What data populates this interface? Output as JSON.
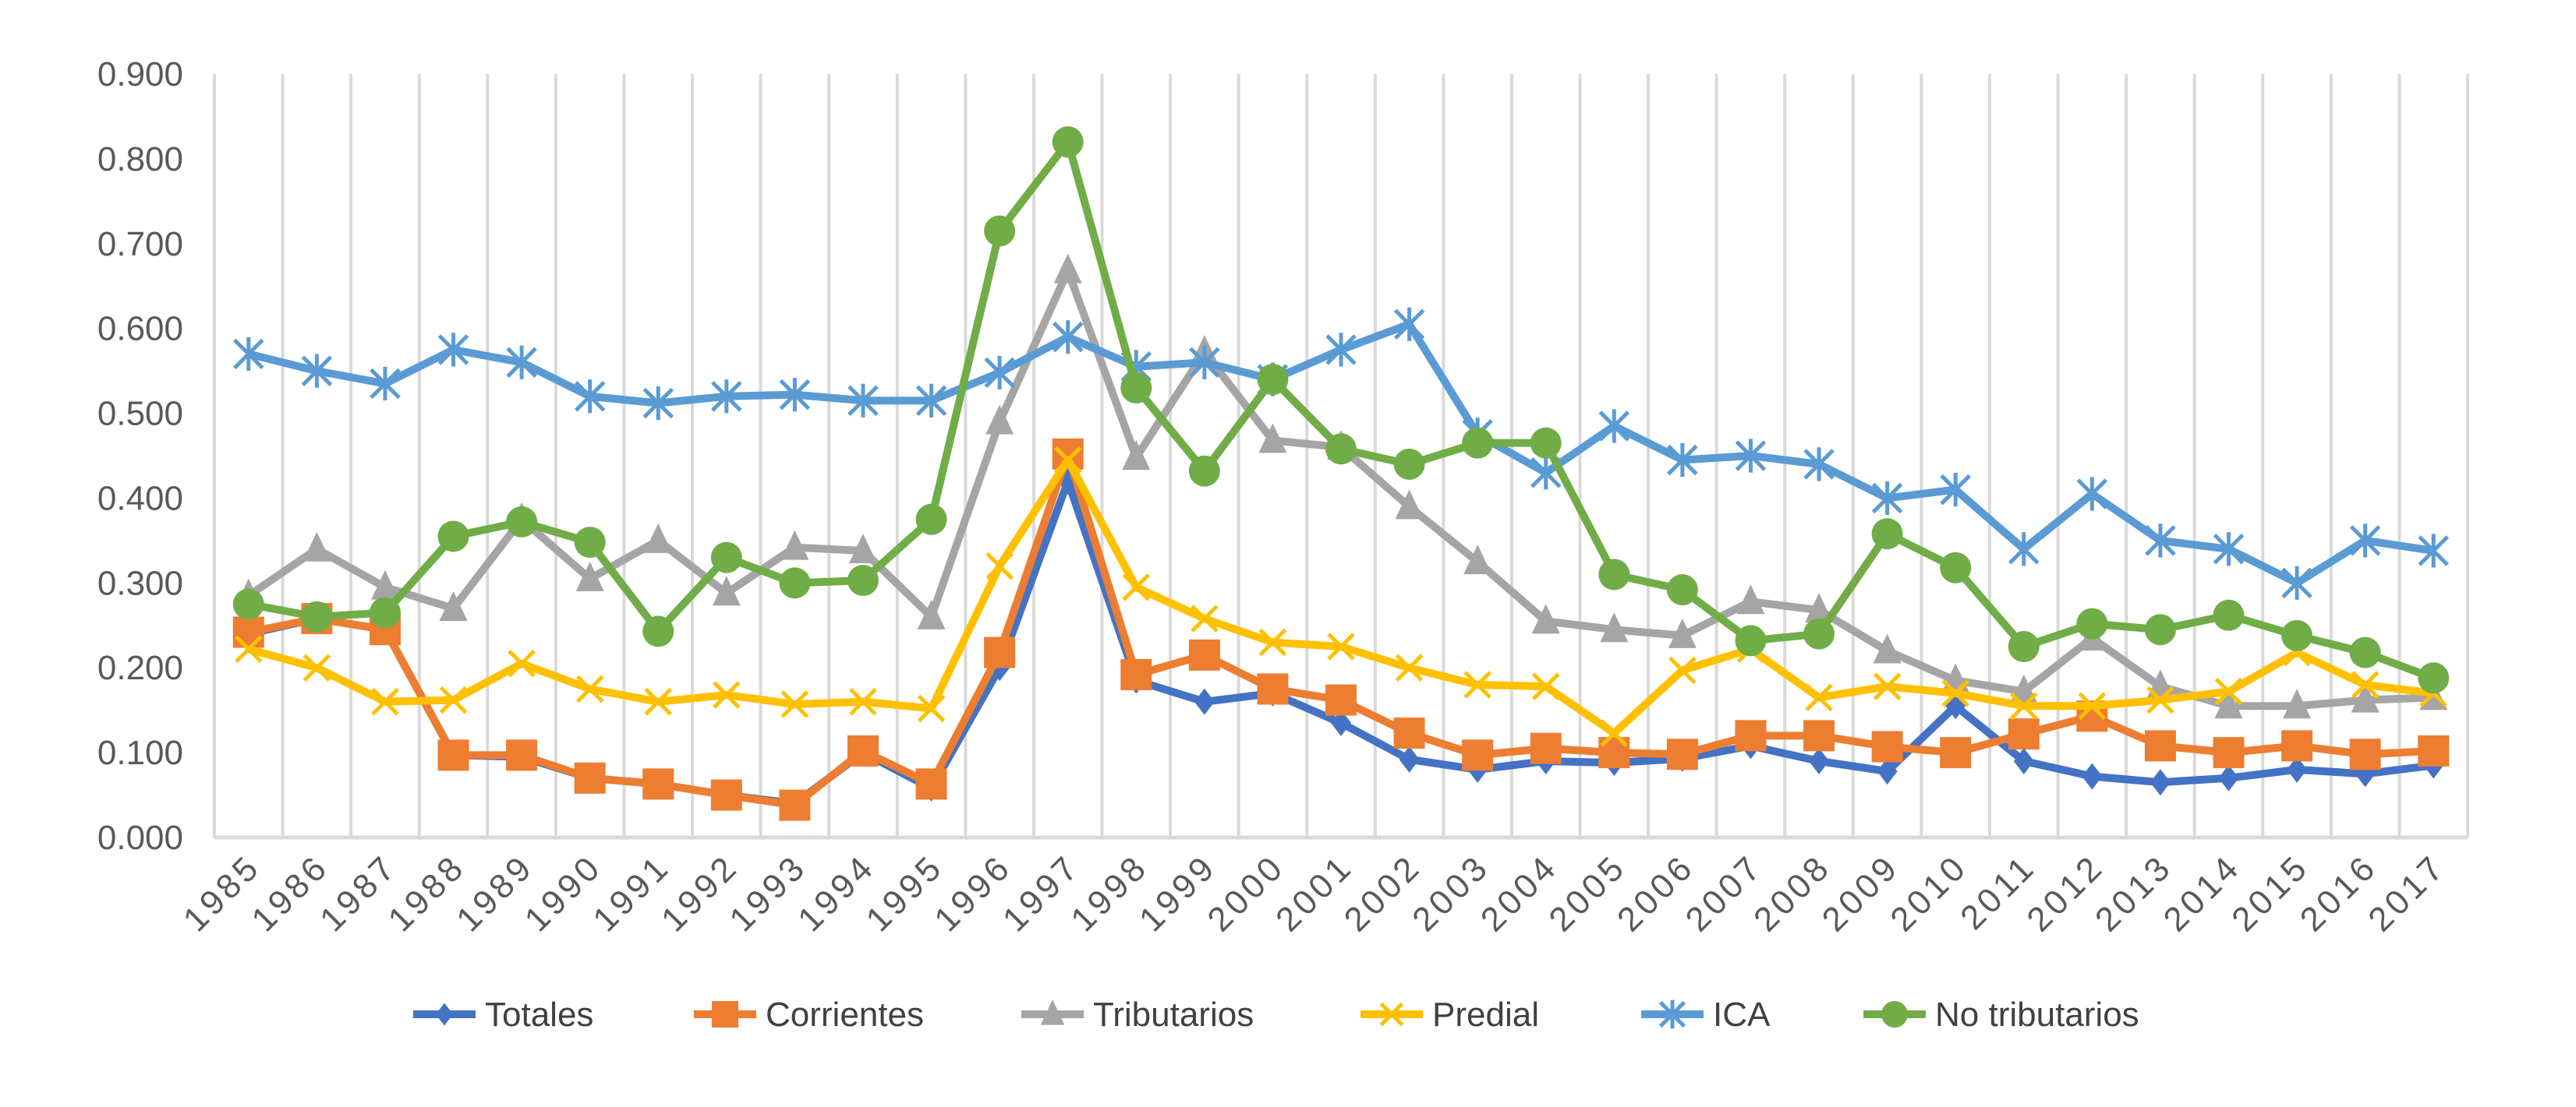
{
  "chart_data": {
    "type": "line",
    "title": "",
    "xlabel": "",
    "ylabel": "",
    "ylim": [
      0,
      0.9
    ],
    "ytick_step": 0.1,
    "ytick_labels": [
      "0.000",
      "0.100",
      "0.200",
      "0.300",
      "0.400",
      "0.500",
      "0.600",
      "0.700",
      "0.800",
      "0.900"
    ],
    "grid": "vertical",
    "legend_position": "bottom",
    "categories": [
      "1985",
      "1986",
      "1987",
      "1988",
      "1989",
      "1990",
      "1991",
      "1992",
      "1993",
      "1994",
      "1995",
      "1996",
      "1997",
      "1998",
      "1999",
      "2000",
      "2001",
      "2002",
      "2003",
      "2004",
      "2005",
      "2006",
      "2007",
      "2008",
      "2009",
      "2010",
      "2011",
      "2012",
      "2013",
      "2014",
      "2015",
      "2016",
      "2017"
    ],
    "series": [
      {
        "name": "Totales",
        "color": "#4472C4",
        "marker": "diamond",
        "values": [
          0.24,
          0.258,
          0.245,
          0.097,
          0.095,
          0.07,
          0.063,
          0.05,
          0.04,
          0.1,
          0.058,
          0.2,
          0.42,
          0.185,
          0.16,
          0.17,
          0.135,
          0.092,
          0.08,
          0.09,
          0.088,
          0.093,
          0.108,
          0.09,
          0.078,
          0.155,
          0.09,
          0.072,
          0.065,
          0.07,
          0.08,
          0.075,
          0.085
        ]
      },
      {
        "name": "Corrientes",
        "color": "#ED7D31",
        "marker": "square",
        "values": [
          0.242,
          0.258,
          0.245,
          0.097,
          0.097,
          0.07,
          0.063,
          0.05,
          0.038,
          0.102,
          0.063,
          0.218,
          0.452,
          0.192,
          0.215,
          0.175,
          0.162,
          0.123,
          0.097,
          0.105,
          0.1,
          0.098,
          0.12,
          0.12,
          0.107,
          0.1,
          0.122,
          0.143,
          0.108,
          0.1,
          0.108,
          0.098,
          0.102
        ]
      },
      {
        "name": "Tributarios",
        "color": "#A5A5A5",
        "marker": "triangle",
        "values": [
          0.285,
          0.34,
          0.295,
          0.27,
          0.375,
          0.305,
          0.35,
          0.288,
          0.342,
          0.338,
          0.26,
          0.49,
          0.668,
          0.448,
          0.572,
          0.468,
          0.46,
          0.39,
          0.325,
          0.255,
          0.245,
          0.238,
          0.278,
          0.268,
          0.22,
          0.185,
          0.172,
          0.235,
          0.178,
          0.155,
          0.155,
          0.162,
          0.165
        ]
      },
      {
        "name": "Predial",
        "color": "#FFC000",
        "marker": "x",
        "values": [
          0.222,
          0.2,
          0.16,
          0.162,
          0.205,
          0.175,
          0.16,
          0.168,
          0.157,
          0.16,
          0.152,
          0.32,
          0.445,
          0.295,
          0.258,
          0.23,
          0.225,
          0.2,
          0.18,
          0.178,
          0.123,
          0.197,
          0.222,
          0.165,
          0.178,
          0.17,
          0.155,
          0.155,
          0.162,
          0.172,
          0.218,
          0.18,
          0.17
        ]
      },
      {
        "name": "ICA",
        "color": "#5B9BD5",
        "marker": "star",
        "values": [
          0.57,
          0.55,
          0.535,
          0.575,
          0.56,
          0.52,
          0.512,
          0.52,
          0.522,
          0.515,
          0.515,
          0.548,
          0.59,
          0.555,
          0.56,
          0.54,
          0.575,
          0.605,
          0.475,
          0.43,
          0.485,
          0.445,
          0.45,
          0.44,
          0.4,
          0.41,
          0.34,
          0.405,
          0.35,
          0.34,
          0.3,
          0.35,
          0.338
        ]
      },
      {
        "name": "No tributarios",
        "color": "#70AD47",
        "marker": "circle",
        "values": [
          0.275,
          0.26,
          0.265,
          0.355,
          0.372,
          0.348,
          0.243,
          0.33,
          0.3,
          0.303,
          0.375,
          0.715,
          0.82,
          0.53,
          0.432,
          0.54,
          0.458,
          0.44,
          0.465,
          0.465,
          0.31,
          0.292,
          0.232,
          0.24,
          0.358,
          0.318,
          0.225,
          0.252,
          0.245,
          0.262,
          0.238,
          0.218,
          0.188
        ]
      }
    ]
  }
}
